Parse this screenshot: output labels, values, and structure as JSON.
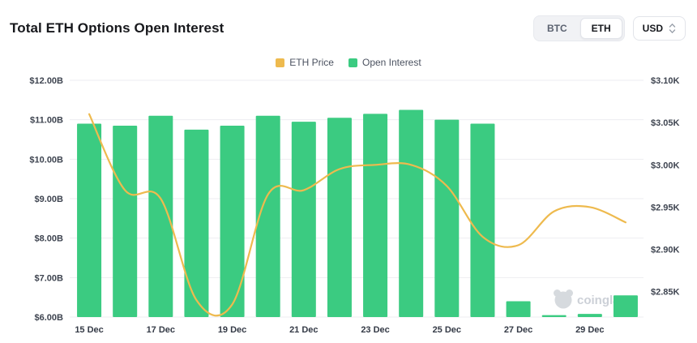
{
  "header": {
    "title": "Total ETH Options Open Interest",
    "coin_toggle": {
      "options": [
        "BTC",
        "ETH"
      ],
      "selected": "ETH"
    },
    "currency_selector": {
      "value": "USD"
    }
  },
  "legend": {
    "items": [
      {
        "label": "ETH Price",
        "color": "#eeba4e"
      },
      {
        "label": "Open Interest",
        "color": "#3bcb81"
      }
    ]
  },
  "watermark": {
    "text": "coinglass"
  },
  "chart_data": {
    "type": "bar",
    "title": "Total ETH Options Open Interest",
    "x": [
      "15 Dec",
      "16 Dec",
      "17 Dec",
      "18 Dec",
      "19 Dec",
      "20 Dec",
      "21 Dec",
      "22 Dec",
      "23 Dec",
      "24 Dec",
      "25 Dec",
      "26 Dec",
      "27 Dec",
      "28 Dec",
      "29 Dec",
      "30 Dec"
    ],
    "x_axis_tick_labels": [
      "15 Dec",
      "17 Dec",
      "19 Dec",
      "21 Dec",
      "23 Dec",
      "25 Dec",
      "27 Dec",
      "29 Dec"
    ],
    "series": [
      {
        "name": "Open Interest",
        "type": "bar",
        "yaxis": "left",
        "color": "#3bcb81",
        "unit": "USD billions",
        "values": [
          10.9,
          10.85,
          11.1,
          10.75,
          10.85,
          11.1,
          10.95,
          11.05,
          11.15,
          11.25,
          11.0,
          10.9,
          6.4,
          6.05,
          6.08,
          6.55
        ]
      },
      {
        "name": "ETH Price",
        "type": "line",
        "yaxis": "right",
        "color": "#eeba4e",
        "unit": "USD thousands",
        "values": [
          3.06,
          2.97,
          2.96,
          2.84,
          2.835,
          2.965,
          2.97,
          2.995,
          3.0,
          3.0,
          2.975,
          2.915,
          2.905,
          2.945,
          2.95,
          2.932
        ]
      }
    ],
    "left_axis": {
      "min": 6,
      "max": 12,
      "tick_values": [
        12,
        11,
        10,
        9,
        8,
        7,
        6
      ],
      "tick_labels": [
        "$12.00B",
        "$11.00B",
        "$10.00B",
        "$9.00B",
        "$8.00B",
        "$7.00B",
        "$6.00B"
      ]
    },
    "right_axis": {
      "min": 2.82,
      "max": 3.1,
      "tick_values": [
        3.1,
        3.05,
        3.0,
        2.95,
        2.9,
        2.85
      ],
      "tick_labels": [
        "$3.10K",
        "$3.05K",
        "$3.00K",
        "$2.95K",
        "$2.90K",
        "$2.85K"
      ]
    },
    "grid": "horizontal",
    "legend_position": "top-center"
  }
}
